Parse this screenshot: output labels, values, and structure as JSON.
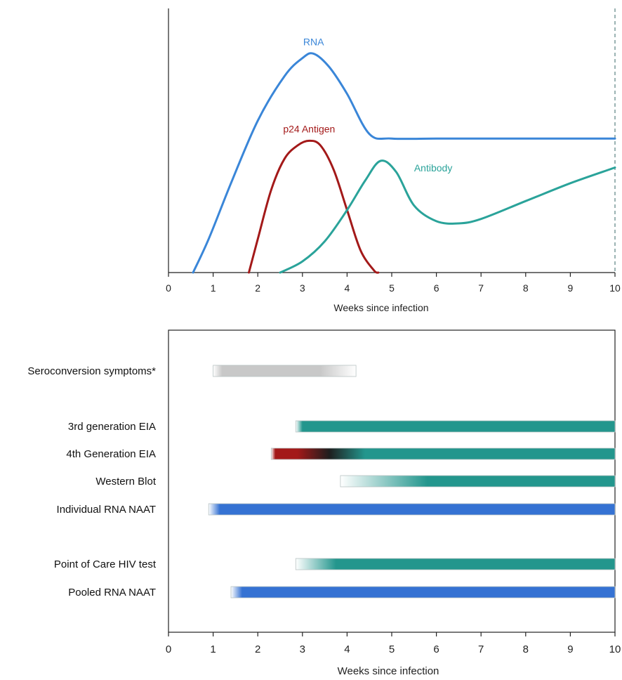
{
  "chart_data": [
    {
      "type": "line",
      "xlabel": "Weeks since infection",
      "xlim": [
        0,
        10
      ],
      "x_ticks": [
        "0",
        "1",
        "2",
        "3",
        "4",
        "5",
        "6",
        "7",
        "8",
        "9",
        "10"
      ],
      "y_axis": "unlabeled relative level",
      "ylim": [
        0,
        100
      ],
      "grid": false,
      "series": [
        {
          "name": "RNA",
          "color": "#3a86d8",
          "points": [
            [
              0.55,
              0
            ],
            [
              0.9,
              15
            ],
            [
              1.4,
              40
            ],
            [
              2.0,
              68
            ],
            [
              2.6,
              88
            ],
            [
              3.0,
              96
            ],
            [
              3.25,
              98
            ],
            [
              3.6,
              92
            ],
            [
              4.0,
              80
            ],
            [
              4.5,
              62
            ],
            [
              5.0,
              60
            ],
            [
              6.0,
              60
            ],
            [
              7.0,
              60
            ],
            [
              8.0,
              60
            ],
            [
              9.0,
              60
            ],
            [
              10.0,
              60
            ]
          ]
        },
        {
          "name": "p24 Antigen",
          "color": "#a31919",
          "points": [
            [
              1.8,
              0
            ],
            [
              2.0,
              15
            ],
            [
              2.3,
              37
            ],
            [
              2.6,
              51
            ],
            [
              2.9,
              57
            ],
            [
              3.15,
              59
            ],
            [
              3.4,
              57
            ],
            [
              3.7,
              46
            ],
            [
              4.0,
              28
            ],
            [
              4.3,
              10
            ],
            [
              4.6,
              1
            ],
            [
              4.7,
              0
            ]
          ]
        },
        {
          "name": "Antibody",
          "color": "#2aa39a",
          "points": [
            [
              2.5,
              0
            ],
            [
              3.0,
              5
            ],
            [
              3.5,
              14
            ],
            [
              4.0,
              28
            ],
            [
              4.4,
              41
            ],
            [
              4.75,
              50
            ],
            [
              5.1,
              45
            ],
            [
              5.5,
              30
            ],
            [
              6.0,
              23
            ],
            [
              6.5,
              22
            ],
            [
              7.0,
              24
            ],
            [
              8.0,
              32
            ],
            [
              9.0,
              40
            ],
            [
              10.0,
              47
            ]
          ]
        }
      ]
    },
    {
      "type": "bar",
      "orientation": "horizontal",
      "xlabel": "Weeks since infection",
      "xlim": [
        0,
        10
      ],
      "x_ticks": [
        "0",
        "1",
        "2",
        "3",
        "4",
        "5",
        "6",
        "7",
        "8",
        "9",
        "10"
      ],
      "grid": false,
      "categories": [
        "Seroconversion symptoms*",
        "3rd generation EIA",
        "4th Generation EIA",
        "Western Blot",
        "Individual RNA NAAT",
        "Point of Care HIV test",
        "Pooled RNA NAAT"
      ],
      "bars": [
        {
          "label": "Seroconversion symptoms*",
          "start": 1.0,
          "end": 4.2,
          "color": "#c8c8c8",
          "fade_in_end": 1.2,
          "fade_out_start": 3.4
        },
        {
          "label": "3rd generation EIA",
          "start": 2.85,
          "end": 10,
          "color": "#23968d",
          "fade_in_end": 3.0
        },
        {
          "label": "4th Generation EIA",
          "start": 2.3,
          "end": 10,
          "color": "#23968d",
          "start_color": "#a31919",
          "fade_in_end": 4.4
        },
        {
          "label": "Western Blot",
          "start": 3.85,
          "end": 10,
          "color": "#23968d",
          "fade_in_end": 5.8
        },
        {
          "label": "Individual RNA NAAT",
          "start": 0.9,
          "end": 10,
          "color": "#3572d3",
          "fade_in_end": 1.15
        },
        {
          "label": "Point of Care HIV test",
          "start": 2.85,
          "end": 10,
          "color": "#23968d",
          "fade_in_end": 3.75
        },
        {
          "label": "Pooled RNA NAAT",
          "start": 1.4,
          "end": 10,
          "color": "#3572d3",
          "fade_in_end": 1.65
        }
      ]
    }
  ]
}
